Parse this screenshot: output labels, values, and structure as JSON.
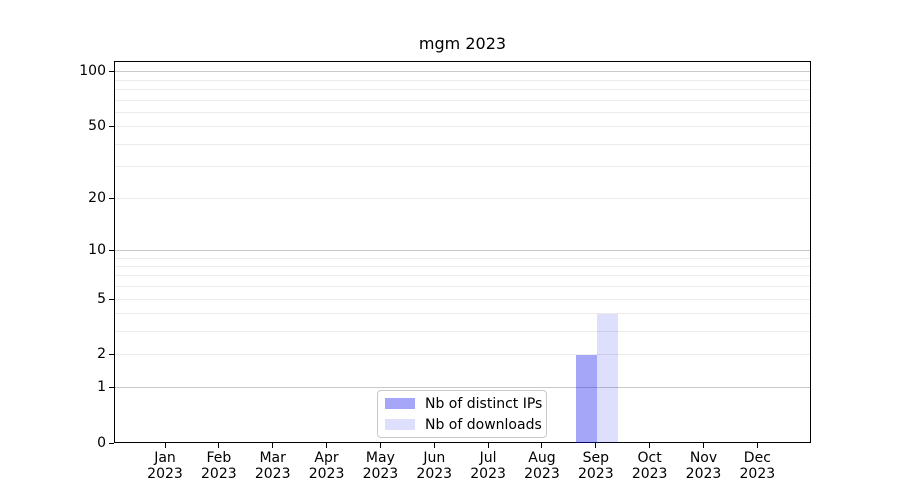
{
  "chart_data": {
    "type": "bar",
    "title": "mgm 2023",
    "scale": "log1p",
    "categories": [
      "Jan",
      "Feb",
      "Mar",
      "Apr",
      "May",
      "Jun",
      "Jul",
      "Aug",
      "Sep",
      "Oct",
      "Nov",
      "Dec"
    ],
    "x_tick_year": "2023",
    "series": [
      {
        "name": "Nb of distinct IPs",
        "color": "rgba(20,20,240,0.38)",
        "values": [
          0,
          0,
          0,
          0,
          0,
          0,
          0,
          0,
          2,
          0,
          0,
          0
        ]
      },
      {
        "name": "Nb of downloads",
        "color": "rgba(20,20,240,0.14)",
        "values": [
          0,
          0,
          0,
          0,
          0,
          0,
          0,
          0,
          4,
          0,
          0,
          0
        ]
      }
    ],
    "y_ticks": [
      0,
      1,
      2,
      5,
      10,
      20,
      50,
      100
    ],
    "y_major_gridlines": [
      1,
      10,
      100
    ],
    "y_minor_gridlines": [
      2,
      3,
      4,
      5,
      6,
      7,
      8,
      9,
      20,
      30,
      40,
      50,
      60,
      70,
      80,
      90
    ],
    "ylim": [
      0,
      113
    ],
    "grid": true,
    "legend_position": "lower center",
    "colors": {
      "major_grid": "#c9c9c9",
      "minor_grid": "#ebebeb",
      "spine": "#000000",
      "background": "#ffffff"
    }
  }
}
